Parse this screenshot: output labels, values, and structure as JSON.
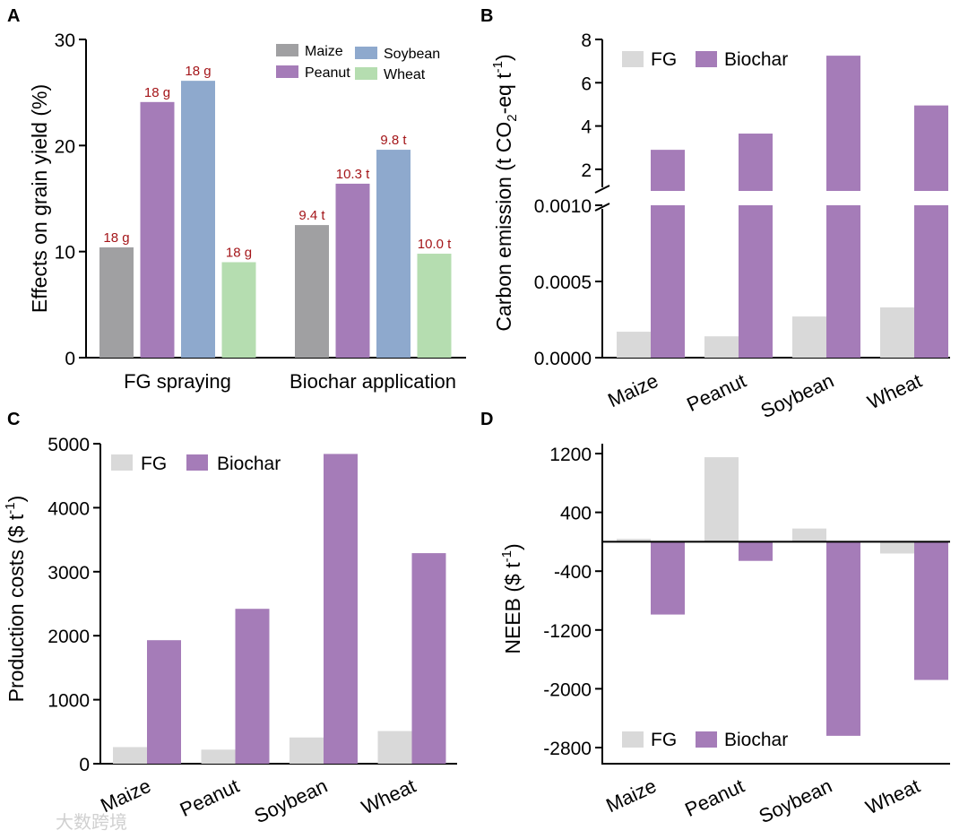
{
  "watermark": "大数跨境",
  "colors": {
    "maize": "#a0a0a2",
    "peanut": "#a57cb8",
    "soybean": "#8ea9cd",
    "wheat": "#b5ddb0",
    "fg": "#d9d9d9",
    "biochar": "#a57cb8",
    "data_label": "#a4161a"
  },
  "chart_data": [
    {
      "panel": "A",
      "type": "bar",
      "ylabel": "Effects on grain yield (%)",
      "ylim": [
        0,
        30
      ],
      "yticks": [
        0,
        10,
        20,
        30
      ],
      "groups": [
        "FG spraying",
        "Biochar application"
      ],
      "series": [
        {
          "name": "Maize",
          "values": [
            10.4,
            12.5
          ],
          "labels": [
            "18 g",
            "9.4 t"
          ]
        },
        {
          "name": "Peanut",
          "values": [
            24.1,
            16.4
          ],
          "labels": [
            "18 g",
            "10.3 t"
          ]
        },
        {
          "name": "Soybean",
          "values": [
            26.1,
            19.6
          ],
          "labels": [
            "18 g",
            "9.8 t"
          ]
        },
        {
          "name": "Wheat",
          "values": [
            9.0,
            9.8
          ],
          "labels": [
            "18 g",
            "10.0 t"
          ]
        }
      ],
      "legend": "top-right"
    },
    {
      "panel": "B",
      "type": "bar",
      "ylabel": "Carbon emission (t CO2-eq t-1)",
      "ylabel_parts": {
        "main": "Carbon emission (t CO",
        "sub": "2",
        "mid": "-eq t",
        "sup": "-1",
        "end": ")"
      },
      "broken_axis": true,
      "lower_ylim": [
        0,
        0.001
      ],
      "lower_yticks": [
        "0.0000",
        "0.0005",
        "0.0010"
      ],
      "upper_ylim": [
        1,
        8
      ],
      "upper_yticks": [
        "2",
        "4",
        "6",
        "8"
      ],
      "categories": [
        "Maize",
        "Peanut",
        "Soybean",
        "Wheat"
      ],
      "series": [
        {
          "name": "FG",
          "values": [
            0.00017,
            0.00014,
            0.00027,
            0.00033
          ]
        },
        {
          "name": "Biochar",
          "values": [
            2.9,
            3.65,
            7.25,
            4.95
          ]
        }
      ],
      "legend": "top-left"
    },
    {
      "panel": "C",
      "type": "bar",
      "ylabel": "Production costs ($ t-1)",
      "ylabel_parts": {
        "main": "Production costs ($ t",
        "sup": "-1",
        "end": ")"
      },
      "ylim": [
        0,
        5000
      ],
      "yticks": [
        0,
        1000,
        2000,
        3000,
        4000,
        5000
      ],
      "categories": [
        "Maize",
        "Peanut",
        "Soybean",
        "Wheat"
      ],
      "series": [
        {
          "name": "FG",
          "values": [
            260,
            220,
            410,
            510
          ]
        },
        {
          "name": "Biochar",
          "values": [
            1930,
            2420,
            4840,
            3290
          ]
        }
      ],
      "legend": "top-left"
    },
    {
      "panel": "D",
      "type": "bar",
      "ylabel": "NEEB ($ t-1)",
      "ylabel_parts": {
        "main": "NEEB ($ t",
        "sup": "-1",
        "end": ")"
      },
      "ylim": [
        -3000,
        1300
      ],
      "yticks": [
        -2800,
        -2000,
        -1200,
        -400,
        400,
        1200
      ],
      "categories": [
        "Maize",
        "Peanut",
        "Soybean",
        "Wheat"
      ],
      "series": [
        {
          "name": "FG",
          "values": [
            40,
            1150,
            180,
            -160
          ]
        },
        {
          "name": "Biochar",
          "values": [
            -990,
            -260,
            -2640,
            -1880
          ]
        }
      ],
      "legend": "bottom-left"
    }
  ]
}
